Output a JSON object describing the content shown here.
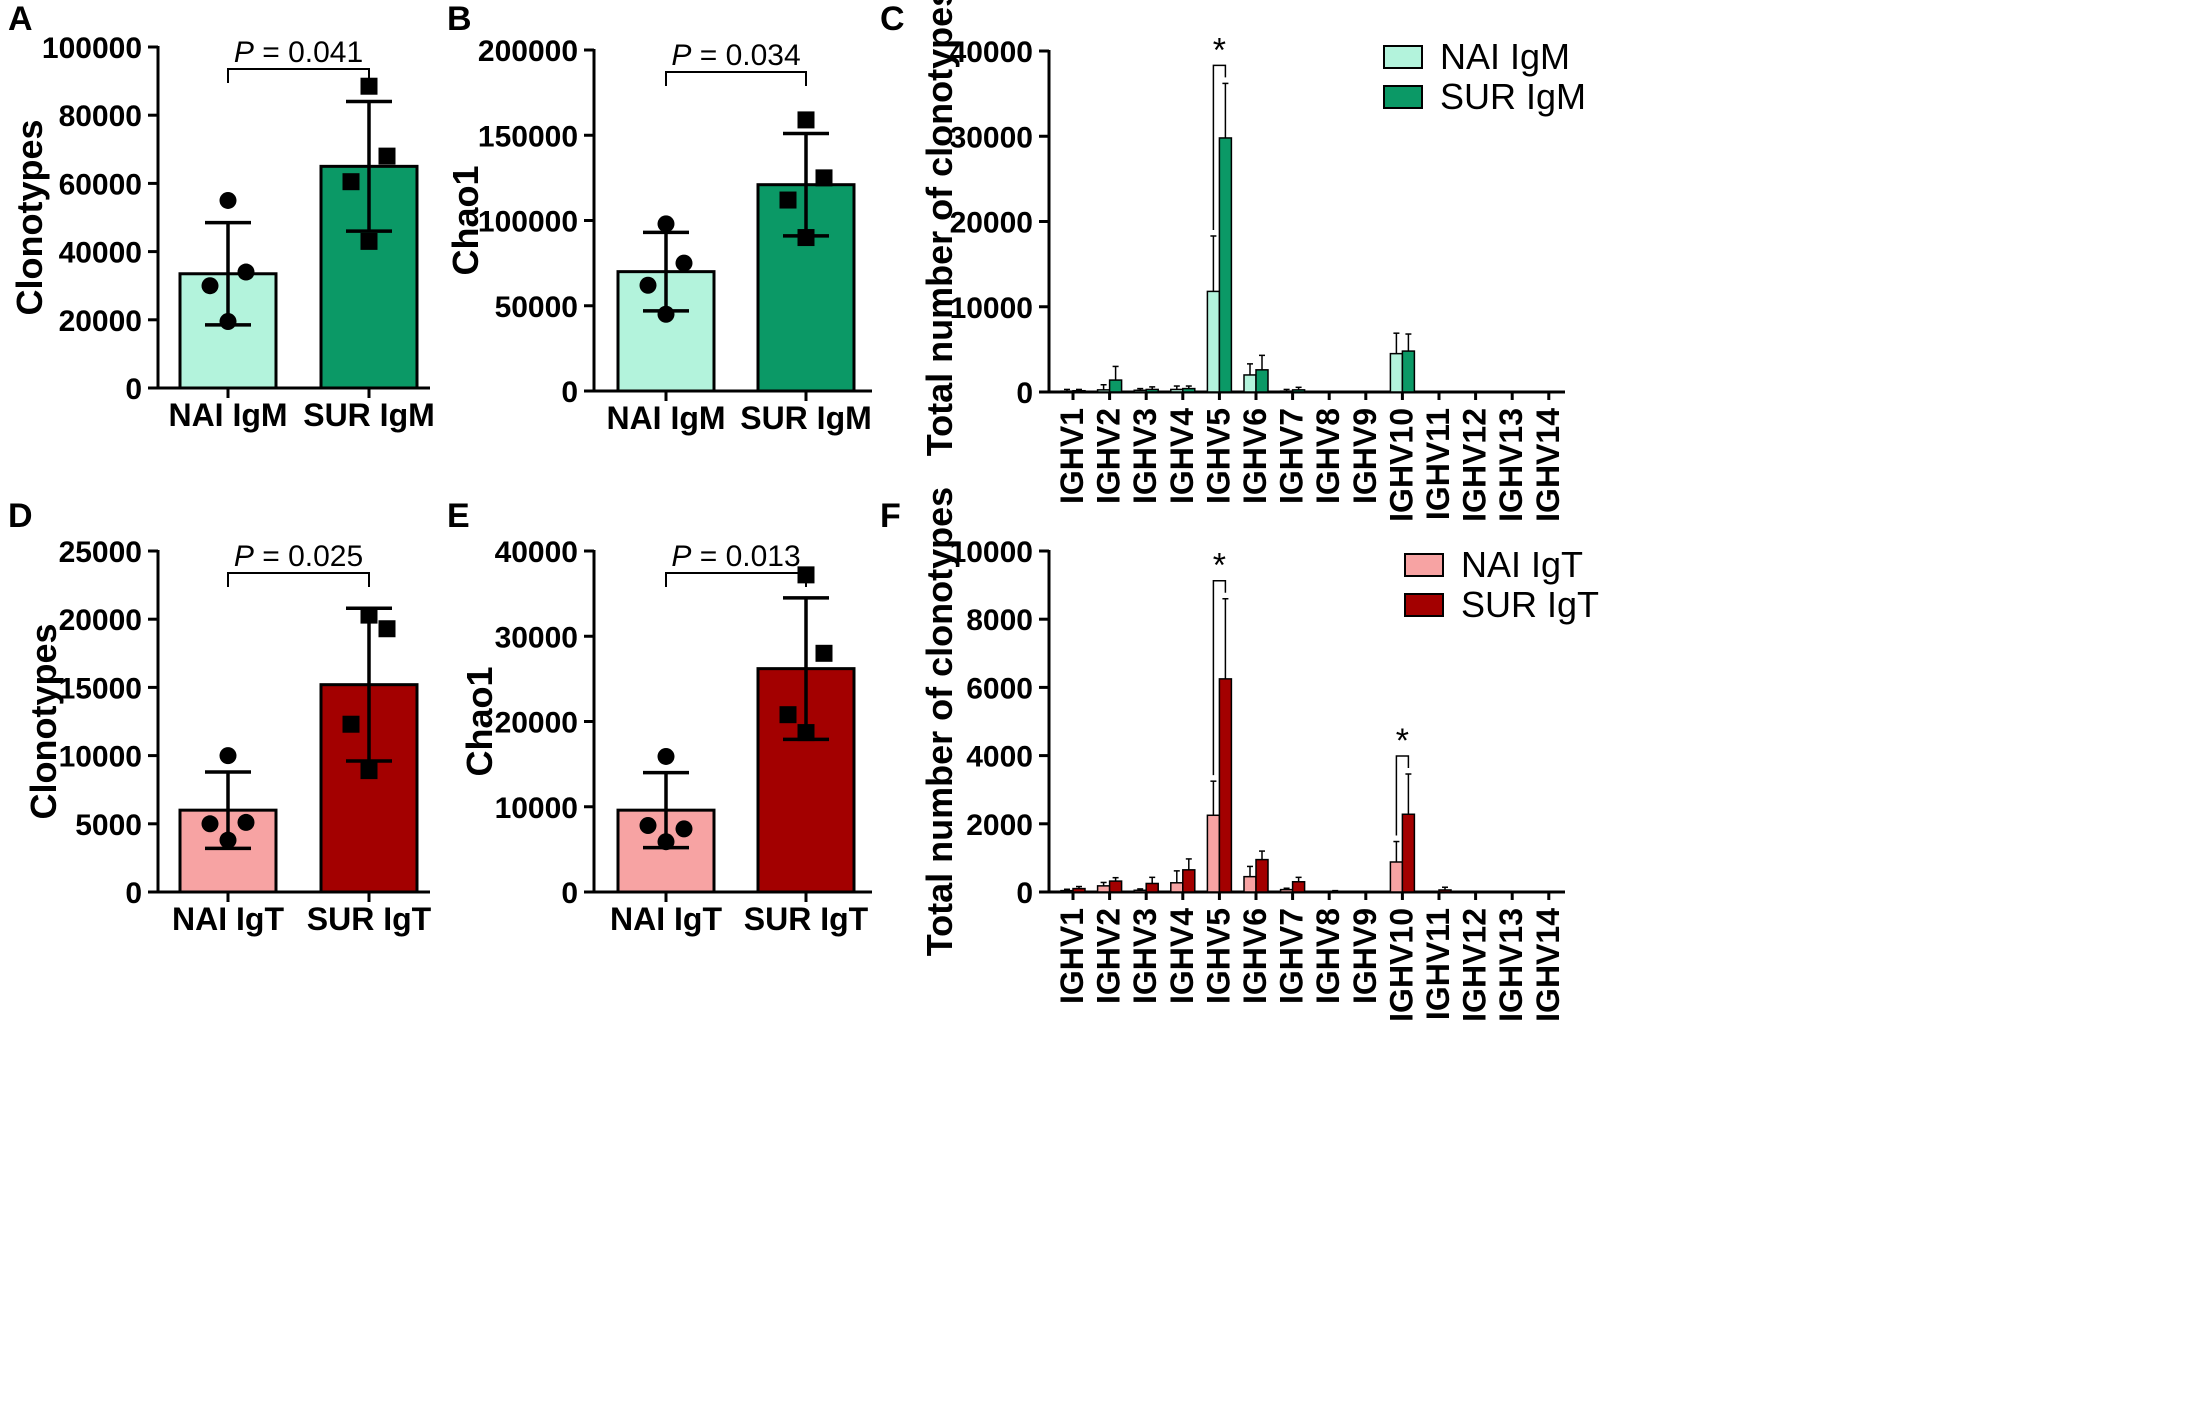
{
  "colors": {
    "nai_igm": "#b3f3dc",
    "sur_igm": "#0b9966",
    "nai_igt": "#f7a3a3",
    "sur_igt": "#a30000",
    "axis": "#000000"
  },
  "chart_data": [
    {
      "panel": "A",
      "type": "bar",
      "ylabel": "Clonotypes",
      "ylim": [
        0,
        100000
      ],
      "yticks": [
        "0",
        "20000",
        "40000",
        "60000",
        "80000",
        "100000"
      ],
      "categories": [
        "NAI IgM",
        "SUR IgM"
      ],
      "values": [
        33500,
        65000
      ],
      "sd": [
        15000,
        19000
      ],
      "points": [
        [
          55000,
          34000,
          30000,
          19500
        ],
        [
          88500,
          68000,
          60500,
          43000
        ]
      ],
      "markers": [
        "circle",
        "square"
      ],
      "color_keys": [
        "nai_igm",
        "sur_igm"
      ],
      "p_label": "P",
      "p_value": "= 0.041"
    },
    {
      "panel": "B",
      "type": "bar",
      "ylabel": "Chao1",
      "ylim": [
        0,
        200000
      ],
      "yticks": [
        "0",
        "50000",
        "100000",
        "150000",
        "200000"
      ],
      "categories": [
        "NAI IgM",
        "SUR IgM"
      ],
      "values": [
        70000,
        121000
      ],
      "sd": [
        23000,
        30000
      ],
      "points": [
        [
          98000,
          75000,
          62000,
          45000
        ],
        [
          159000,
          125000,
          112000,
          90000
        ]
      ],
      "markers": [
        "circle",
        "square"
      ],
      "color_keys": [
        "nai_igm",
        "sur_igm"
      ],
      "p_label": "P",
      "p_value": "= 0.034"
    },
    {
      "panel": "C",
      "type": "bar",
      "ylabel": "Total number of clonotypes",
      "ylim": [
        0,
        40000
      ],
      "yticks": [
        "0",
        "10000",
        "20000",
        "30000",
        "40000"
      ],
      "categories": [
        "IGHV1",
        "IGHV2",
        "IGHV3",
        "IGHV4",
        "IGHV5",
        "IGHV6",
        "IGHV7",
        "IGHV8",
        "IGHV9",
        "IGHV10",
        "IGHV11",
        "IGHV12",
        "IGHV13",
        "IGHV14"
      ],
      "series": [
        {
          "name": "NAI IgM",
          "color_key": "nai_igm",
          "values": [
            100,
            250,
            200,
            300,
            11800,
            2000,
            100,
            0,
            0,
            4500,
            0,
            0,
            0,
            0
          ],
          "err": [
            200,
            600,
            200,
            400,
            6500,
            1300,
            200,
            0,
            0,
            2400,
            0,
            0,
            0,
            0
          ]
        },
        {
          "name": "SUR IgM",
          "color_key": "sur_igm",
          "values": [
            150,
            1400,
            300,
            400,
            29800,
            2600,
            250,
            0,
            0,
            4800,
            0,
            0,
            0,
            0
          ],
          "err": [
            150,
            1600,
            300,
            300,
            6400,
            1700,
            300,
            0,
            0,
            2000,
            0,
            0,
            0,
            0
          ]
        }
      ],
      "significance": [
        {
          "category_index": 4,
          "label": "*"
        }
      ]
    },
    {
      "panel": "D",
      "type": "bar",
      "ylabel": "Clonotypes",
      "ylim": [
        0,
        25000
      ],
      "yticks": [
        "0",
        "5000",
        "10000",
        "15000",
        "20000",
        "25000"
      ],
      "categories": [
        "NAI IgT",
        "SUR IgT"
      ],
      "values": [
        6000,
        15200
      ],
      "sd": [
        2800,
        5600
      ],
      "points": [
        [
          10000,
          5100,
          5000,
          3800
        ],
        [
          20300,
          19300,
          12300,
          8900
        ]
      ],
      "markers": [
        "circle",
        "square"
      ],
      "color_keys": [
        "nai_igt",
        "sur_igt"
      ],
      "p_label": "P",
      "p_value": "= 0.025"
    },
    {
      "panel": "E",
      "type": "bar",
      "ylabel": "Chao1",
      "ylim": [
        0,
        40000
      ],
      "yticks": [
        "0",
        "10000",
        "20000",
        "30000",
        "40000"
      ],
      "categories": [
        "NAI IgT",
        "SUR IgT"
      ],
      "values": [
        9600,
        26200
      ],
      "sd": [
        4400,
        8300
      ],
      "points": [
        [
          15900,
          7400,
          7800,
          5900
        ],
        [
          37200,
          28000,
          20800,
          18700
        ]
      ],
      "markers": [
        "circle",
        "square"
      ],
      "color_keys": [
        "nai_igt",
        "sur_igt"
      ],
      "p_label": "P",
      "p_value": "= 0.013"
    },
    {
      "panel": "F",
      "type": "bar",
      "ylabel": "Total number of clonotypes",
      "ylim": [
        0,
        10000
      ],
      "yticks": [
        "0",
        "2000",
        "4000",
        "6000",
        "8000",
        "10000"
      ],
      "categories": [
        "IGHV1",
        "IGHV2",
        "IGHV3",
        "IGHV4",
        "IGHV5",
        "IGHV6",
        "IGHV7",
        "IGHV8",
        "IGHV9",
        "IGHV10",
        "IGHV11",
        "IGHV12",
        "IGHV13",
        "IGHV14"
      ],
      "series": [
        {
          "name": "NAI IgT",
          "color_key": "nai_igt",
          "values": [
            40,
            180,
            50,
            270,
            2250,
            450,
            70,
            0,
            0,
            880,
            0,
            0,
            0,
            0
          ],
          "err": [
            40,
            100,
            40,
            350,
            1000,
            300,
            40,
            0,
            0,
            600,
            0,
            0,
            0,
            0
          ]
        },
        {
          "name": "SUR IgT",
          "color_key": "sur_igt",
          "values": [
            100,
            320,
            250,
            650,
            6250,
            950,
            300,
            20,
            0,
            2280,
            60,
            0,
            0,
            0
          ],
          "err": [
            60,
            100,
            180,
            320,
            2350,
            250,
            130,
            20,
            0,
            1180,
            80,
            0,
            0,
            0
          ]
        }
      ],
      "significance": [
        {
          "category_index": 4,
          "label": "*"
        },
        {
          "category_index": 9,
          "label": "*"
        }
      ]
    }
  ]
}
